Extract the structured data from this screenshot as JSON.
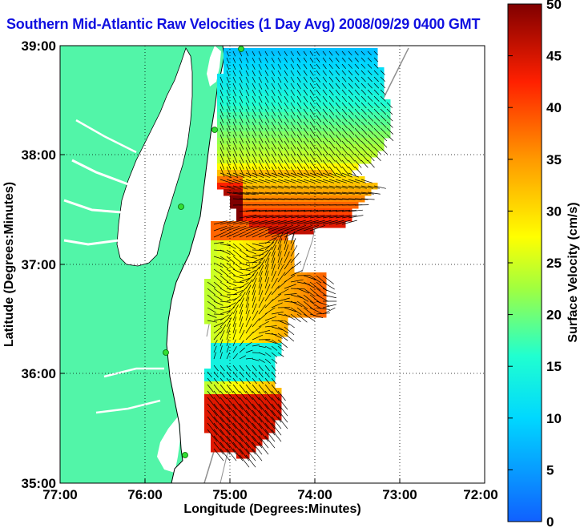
{
  "title": "Southern Mid-Atlantic Raw Velocities (1 Day Avg) 2008/09/29 0400 GMT",
  "xaxis": {
    "label": "Longitude (Degrees:Minutes)",
    "ticks": [
      "77:00",
      "76:00",
      "75:00",
      "74:00",
      "73:00",
      "72:00"
    ]
  },
  "yaxis": {
    "label": "Latitude (Degrees:Minutes)",
    "ticks": [
      "39:00",
      "38:00",
      "37:00",
      "36:00",
      "35:00"
    ]
  },
  "colorbar": {
    "label": "Surface Velocity (cm/s)",
    "ticks": [
      "50",
      "45",
      "40",
      "35",
      "30",
      "25",
      "20",
      "15",
      "10",
      "5",
      "0"
    ],
    "min": 0,
    "max": 50
  },
  "colors": {
    "land": "#52f5a8",
    "title": "#1010e0",
    "station": "#33dd33"
  }
}
